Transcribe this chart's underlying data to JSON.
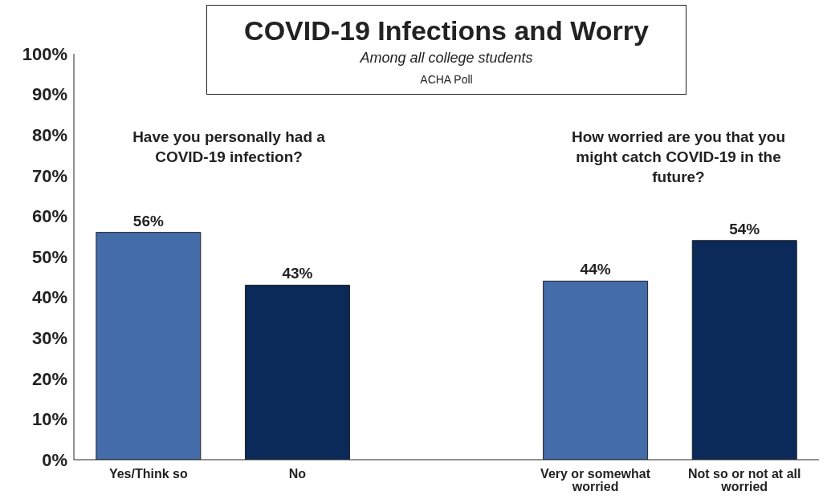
{
  "chart_data": {
    "type": "bar",
    "title": "COVID-19 Infections and Worry",
    "subtitle": "Among all college students",
    "annotations": [
      "ACHA Poll",
      "Have you personally had a COVID-19 infection?",
      "How worried are you that you might catch COVID-19 in the future?"
    ],
    "categories": [
      "Yes/Think so",
      "No",
      null,
      "Very or somewhat worried",
      "Not so or not at all worried"
    ],
    "values": [
      56,
      43,
      null,
      44,
      54
    ],
    "colors": [
      "#436ca8",
      "#0b2a5a",
      null,
      "#436ca8",
      "#0b2a5a"
    ],
    "value_labels": [
      "56%",
      "43%",
      null,
      "44%",
      "54%"
    ],
    "ylim": [
      0,
      100
    ],
    "yticks": [
      {
        "value": 0,
        "label": "0%"
      },
      {
        "value": 10,
        "label": "10%"
      },
      {
        "value": 20,
        "label": "20%"
      },
      {
        "value": 30,
        "label": "30%"
      },
      {
        "value": 40,
        "label": "40%"
      },
      {
        "value": 50,
        "label": "50%"
      },
      {
        "value": 60,
        "label": "60%"
      },
      {
        "value": 70,
        "label": "70%"
      },
      {
        "value": 80,
        "label": "80%"
      },
      {
        "value": 90,
        "label": "90%"
      },
      {
        "value": 100,
        "label": "100%"
      }
    ],
    "grid": false,
    "legend": false
  }
}
